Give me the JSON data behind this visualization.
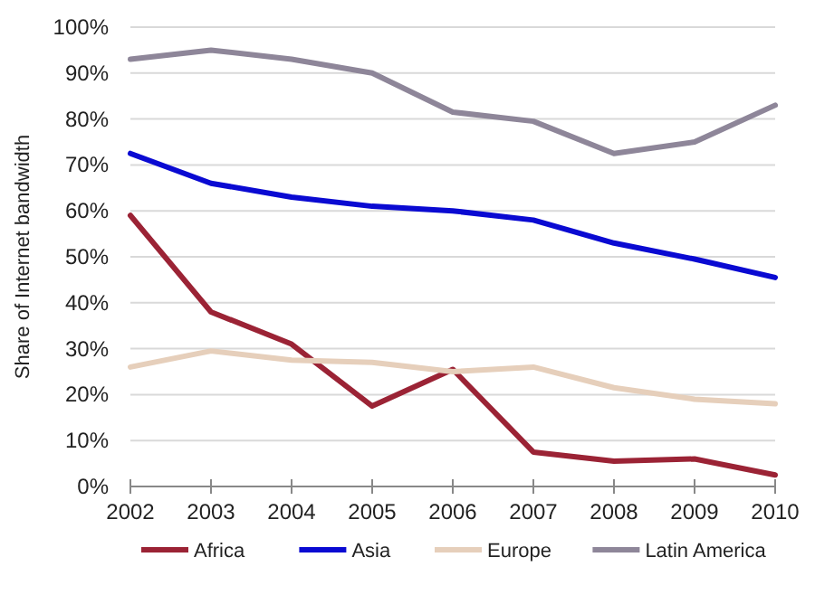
{
  "chart_data": {
    "type": "line",
    "ylabel": "Share of Internet bandwidth",
    "x": [
      2002,
      2003,
      2004,
      2005,
      2006,
      2007,
      2008,
      2009,
      2010
    ],
    "series": [
      {
        "name": "Africa",
        "color": "#9b2335",
        "values": [
          59,
          38,
          31,
          17.5,
          25.5,
          7.5,
          5.5,
          6,
          2.5
        ]
      },
      {
        "name": "Asia",
        "color": "#0a0ad2",
        "values": [
          72.5,
          66,
          63,
          61,
          60,
          58,
          53,
          49.5,
          45.5
        ]
      },
      {
        "name": "Europe",
        "color": "#e6cfbb",
        "values": [
          26,
          29.5,
          27.5,
          27,
          25,
          26,
          21.5,
          19,
          18
        ]
      },
      {
        "name": "Latin America",
        "color": "#8e8699",
        "values": [
          93,
          95,
          93,
          90,
          81.5,
          79.5,
          72.5,
          75,
          83
        ]
      }
    ],
    "xlim": [
      2002,
      2010
    ],
    "xticks": [
      2002,
      2003,
      2004,
      2005,
      2006,
      2007,
      2008,
      2009,
      2010
    ],
    "ylim": [
      0,
      100
    ],
    "yticks": [
      {
        "value": 0,
        "label": "0%"
      },
      {
        "value": 10,
        "label": "10%"
      },
      {
        "value": 20,
        "label": "20%"
      },
      {
        "value": 30,
        "label": "30%"
      },
      {
        "value": 40,
        "label": "40%"
      },
      {
        "value": 50,
        "label": "50%"
      },
      {
        "value": 60,
        "label": "60%"
      },
      {
        "value": 70,
        "label": "70%"
      },
      {
        "value": 80,
        "label": "80%"
      },
      {
        "value": 90,
        "label": "90%"
      },
      {
        "value": 100,
        "label": "100%"
      }
    ],
    "grid": "y",
    "legend": "bottom",
    "marker": "none",
    "line_style": "solid"
  }
}
